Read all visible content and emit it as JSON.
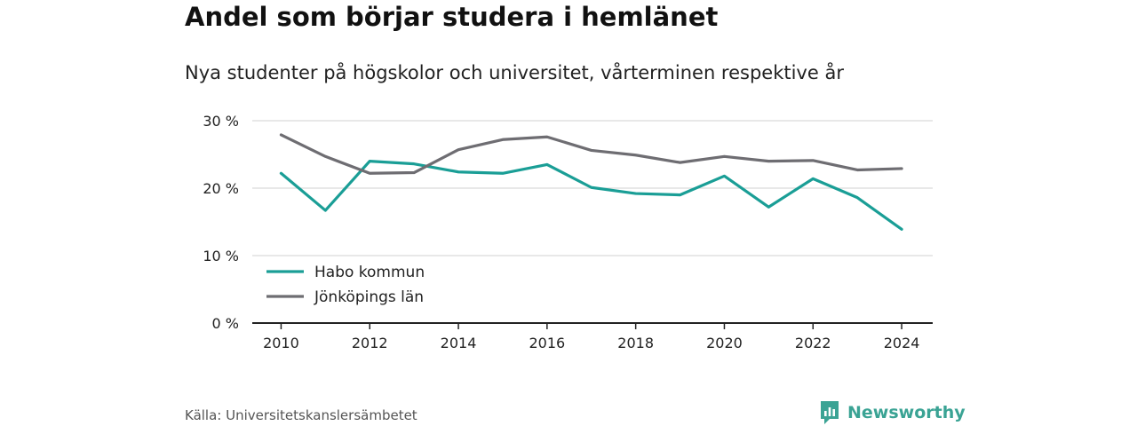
{
  "header": {
    "title": "Andel som börjar studera i hemlänet",
    "subtitle": "Nya studenter på högskolor och universitet, vårterminen respektive år"
  },
  "footer": {
    "source": "Källa: Universitetskanslersämbetet",
    "brand": "Newsworthy",
    "brand_icon": "bar-chart-speech-icon"
  },
  "colors": {
    "habo": "#1a9e96",
    "lan": "#6e6d72",
    "grid": "#d9d9d9",
    "axis": "#222222",
    "brand": "#3aa394"
  },
  "chart_data": {
    "type": "line",
    "x": [
      2010,
      2011,
      2012,
      2013,
      2014,
      2015,
      2016,
      2017,
      2018,
      2019,
      2020,
      2021,
      2022,
      2023,
      2024
    ],
    "x_ticks": [
      2010,
      2012,
      2014,
      2016,
      2018,
      2020,
      2022,
      2024
    ],
    "x_tick_labels": [
      "2010",
      "2012",
      "2014",
      "2016",
      "2018",
      "2020",
      "2022",
      "2024"
    ],
    "y_ticks": [
      0,
      10,
      20,
      30
    ],
    "y_tick_labels": [
      "0 %",
      "10 %",
      "20 %",
      "30 %"
    ],
    "ylim": [
      0,
      30
    ],
    "xlim": [
      2009.35,
      2024.7
    ],
    "grid": true,
    "legend_position": "bottom-left",
    "series": [
      {
        "name": "Habo kommun",
        "values": [
          22.2,
          16.7,
          24.0,
          23.6,
          22.4,
          22.2,
          23.5,
          20.1,
          19.2,
          19.0,
          21.8,
          17.2,
          21.4,
          18.6,
          13.9
        ]
      },
      {
        "name": "Jönköpings län",
        "values": [
          27.9,
          24.7,
          22.2,
          22.3,
          25.7,
          27.2,
          27.6,
          25.6,
          24.9,
          23.8,
          24.7,
          24.0,
          24.1,
          22.7,
          22.9
        ]
      }
    ]
  }
}
